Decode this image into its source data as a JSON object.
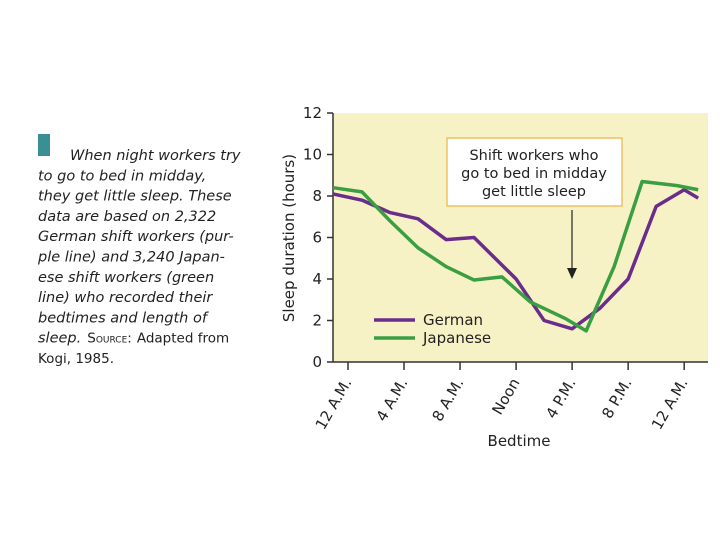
{
  "caption": {
    "lines": [
      "When night workers try",
      "to go to bed in midday,",
      "they get little sleep. These",
      "data are based on 2,322",
      "German shift workers (pur-",
      "ple line) and 3,240 Japan-",
      "ese shift workers (green",
      "line) who recorded their",
      "bedtimes and length of",
      "sleep."
    ],
    "source_label": "Source:",
    "source": [
      "Adapted from",
      "Kogi, 1985."
    ]
  },
  "chart_data": {
    "type": "line",
    "ylabel": "Sleep duration (hours)",
    "xlabel": "Bedtime",
    "annotation": [
      "Shift workers who",
      "go to bed in midday",
      "get little sleep"
    ],
    "xlim": [
      -1.07,
      25.7
    ],
    "ylim": [
      0,
      12
    ],
    "xticks": [
      {
        "value": 0,
        "label": "12 A.M."
      },
      {
        "value": 4,
        "label": "4 A.M."
      },
      {
        "value": 8,
        "label": "8 A.M."
      },
      {
        "value": 12,
        "label": "Noon"
      },
      {
        "value": 16,
        "label": "4 P.M."
      },
      {
        "value": 20,
        "label": "8 P.M."
      },
      {
        "value": 24,
        "label": "12 A.M."
      }
    ],
    "yticks": [
      0,
      2,
      4,
      6,
      8,
      10,
      12
    ],
    "legend": "lower left",
    "series": [
      {
        "name": "German",
        "color": "#6b2d8b",
        "x": [
          -1.07,
          1,
          3,
          5,
          7,
          9,
          12,
          14,
          16,
          18,
          20,
          22,
          24,
          25
        ],
        "values": [
          8.1,
          7.8,
          7.2,
          6.9,
          5.9,
          6.0,
          4.0,
          2.0,
          1.6,
          2.6,
          4.0,
          7.5,
          8.3,
          7.9
        ]
      },
      {
        "name": "Japanese",
        "color": "#3a9e42",
        "x": [
          -1.07,
          1,
          3,
          5,
          7,
          9,
          11,
          13,
          15.5,
          17,
          19,
          21,
          23.5,
          25
        ],
        "values": [
          8.4,
          8.2,
          6.8,
          5.5,
          4.6,
          3.95,
          4.1,
          2.9,
          2.1,
          1.5,
          4.6,
          8.7,
          8.5,
          8.3
        ]
      }
    ]
  }
}
